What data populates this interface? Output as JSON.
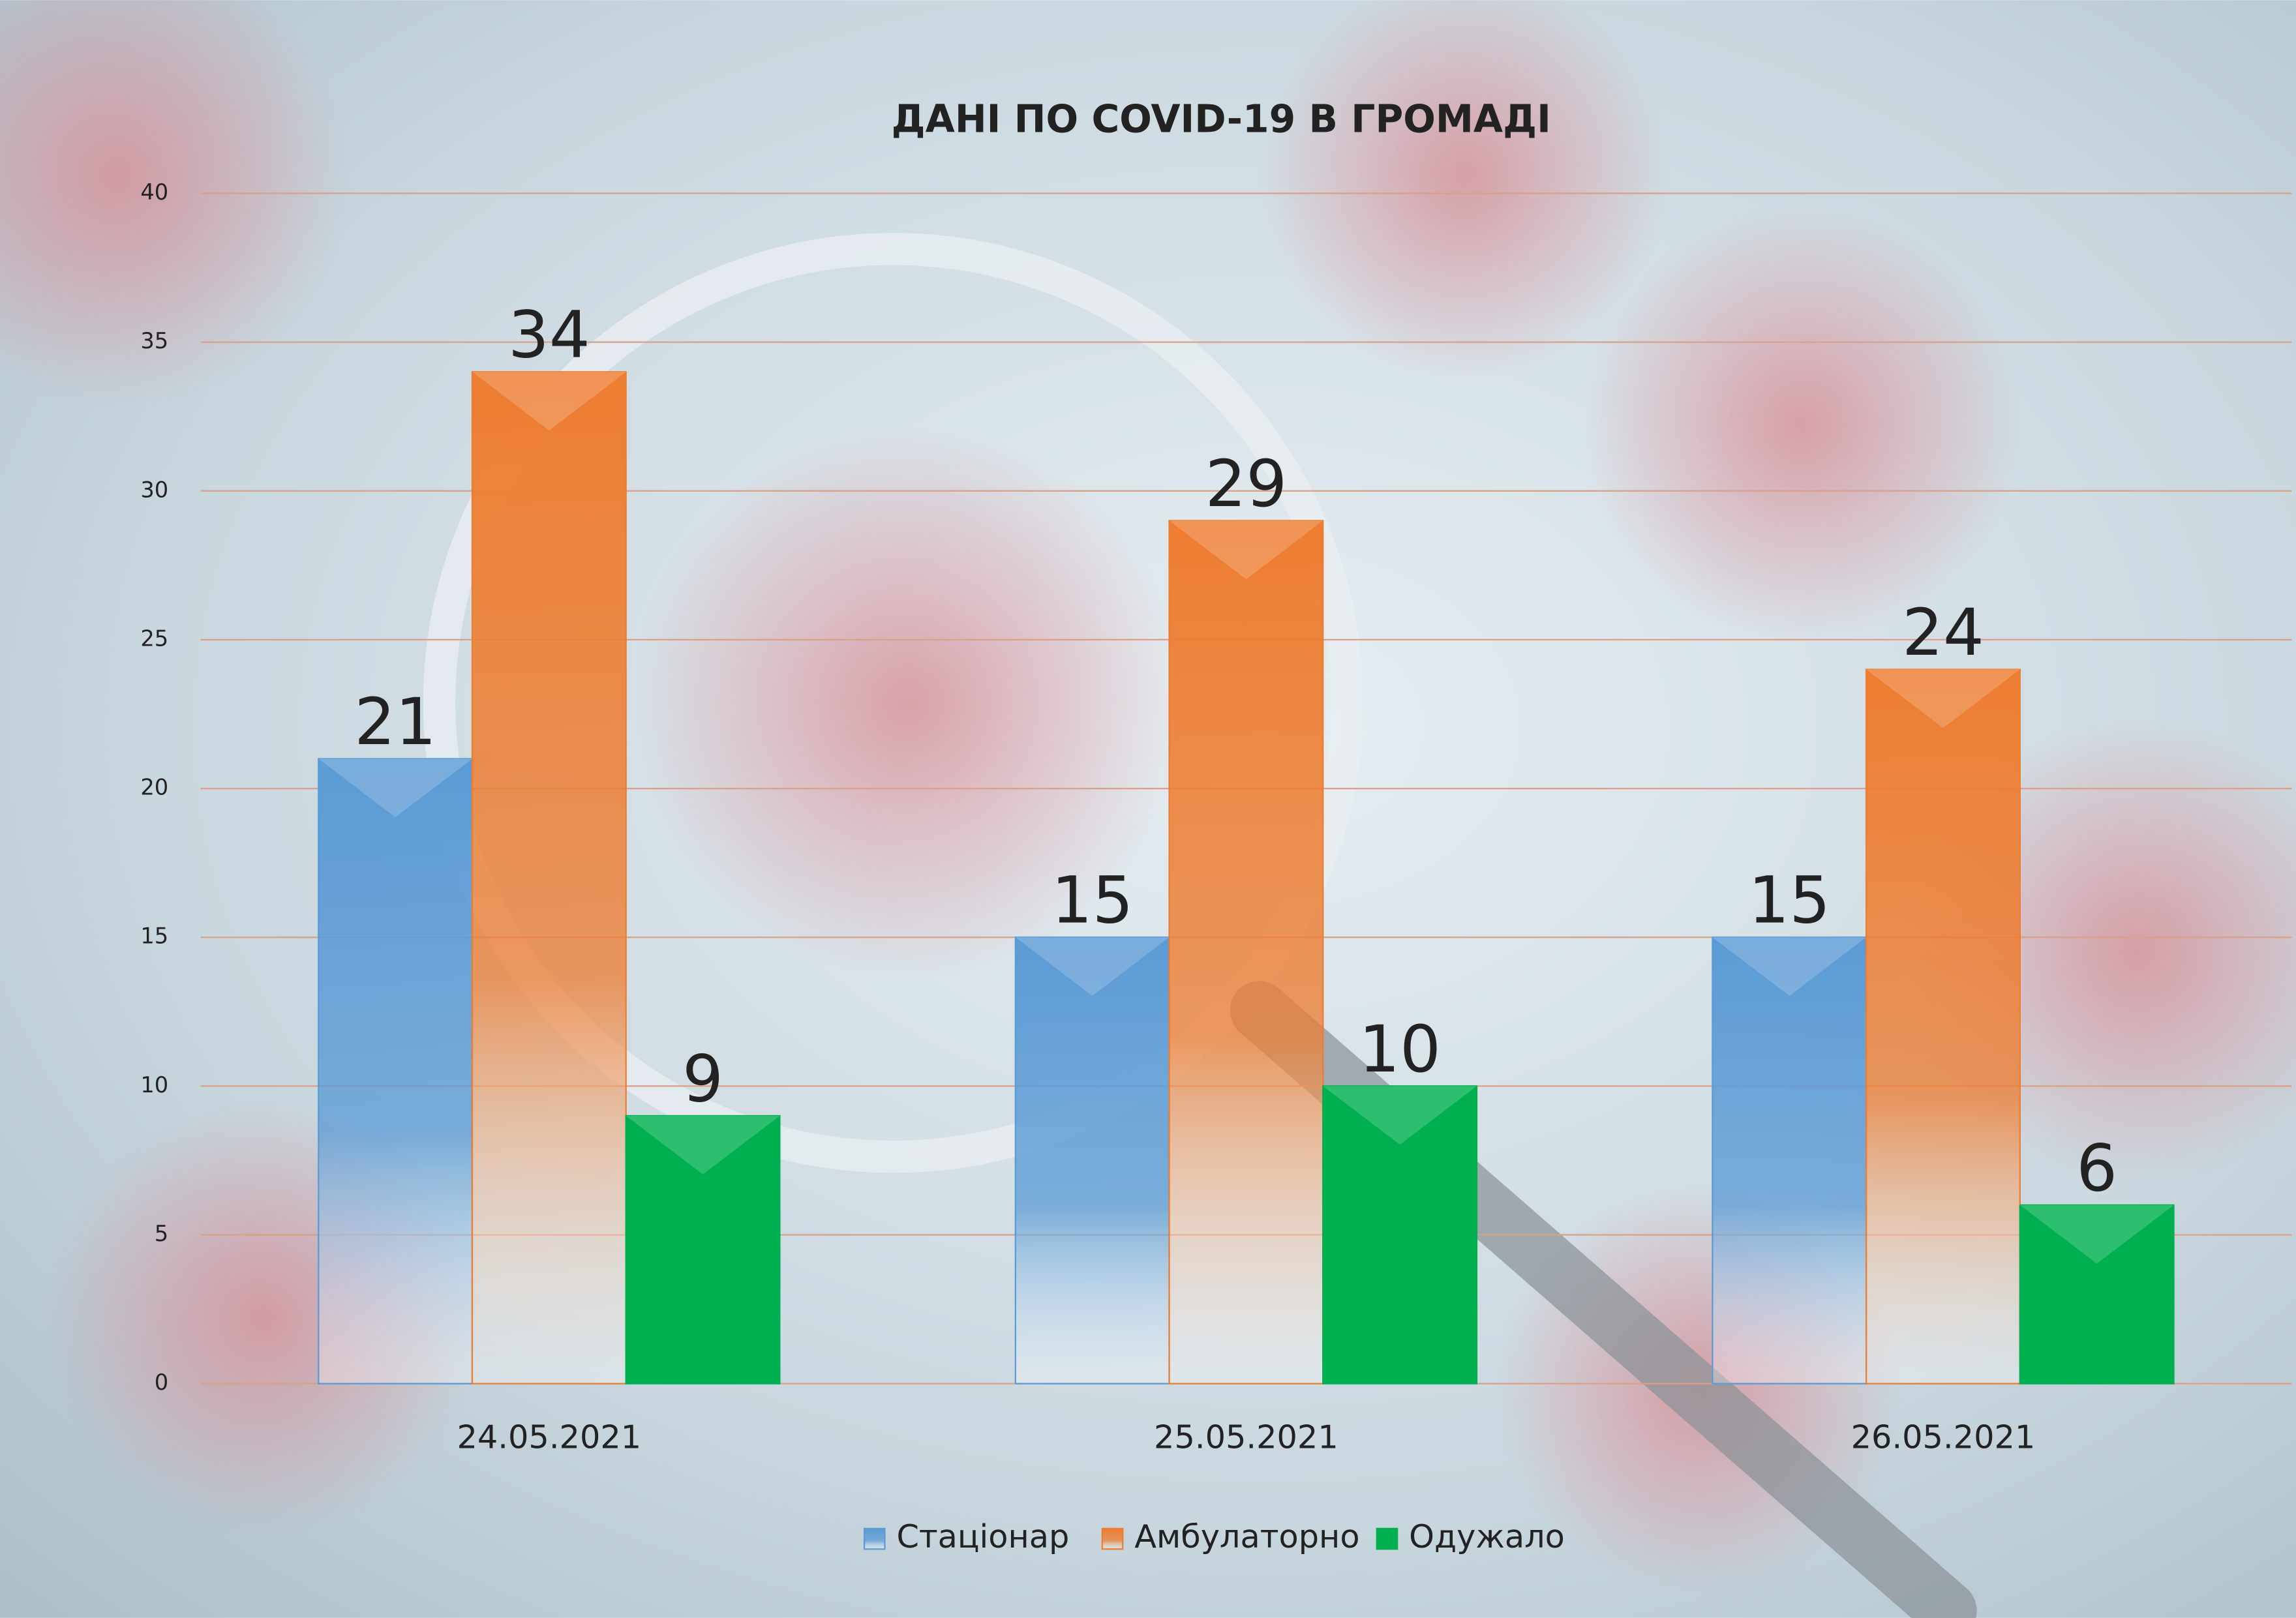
{
  "chart_data": {
    "type": "bar",
    "title": "ДАНІ ПО COVID-19 В ГРОМАДІ",
    "categories": [
      "24.05.2021",
      "25.05.2021",
      "26.05.2021"
    ],
    "series": [
      {
        "name": "Стаціонар",
        "color": "#5b9bd5",
        "values": [
          21,
          15,
          15
        ]
      },
      {
        "name": "Амбулаторно",
        "color": "#ed7d31",
        "values": [
          34,
          29,
          24
        ]
      },
      {
        "name": "Одужало",
        "color": "#00b050",
        "values": [
          9,
          10,
          6
        ]
      }
    ],
    "ylim": [
      0,
      40
    ],
    "yticks": [
      0,
      5,
      10,
      15,
      20,
      25,
      30,
      35,
      40
    ],
    "grid": true,
    "legend": "bottom"
  }
}
